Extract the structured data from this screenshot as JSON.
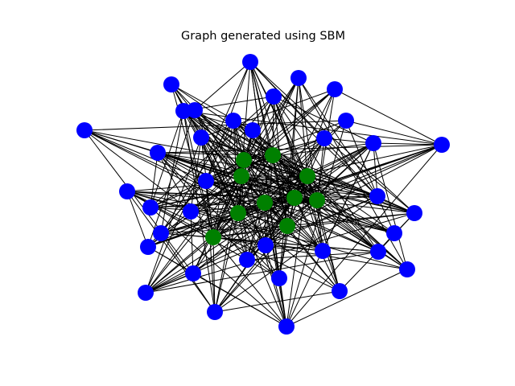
{
  "title": "Graph generated using SBM",
  "colors": {
    "background": "#ffffff",
    "edge": "#000000",
    "block_0": "#0000ff",
    "block_1": "#008000"
  },
  "graph": {
    "node_blocks": [
      0,
      0,
      0,
      0,
      0,
      0,
      0,
      0,
      0,
      0,
      0,
      0,
      0,
      0,
      0,
      0,
      0,
      0,
      0,
      0,
      0,
      0,
      0,
      0,
      0,
      0,
      0,
      0,
      0,
      0,
      0,
      0,
      0,
      0,
      0,
      0,
      1,
      1,
      1,
      1,
      1,
      1,
      1,
      1,
      1,
      1
    ]
  }
}
